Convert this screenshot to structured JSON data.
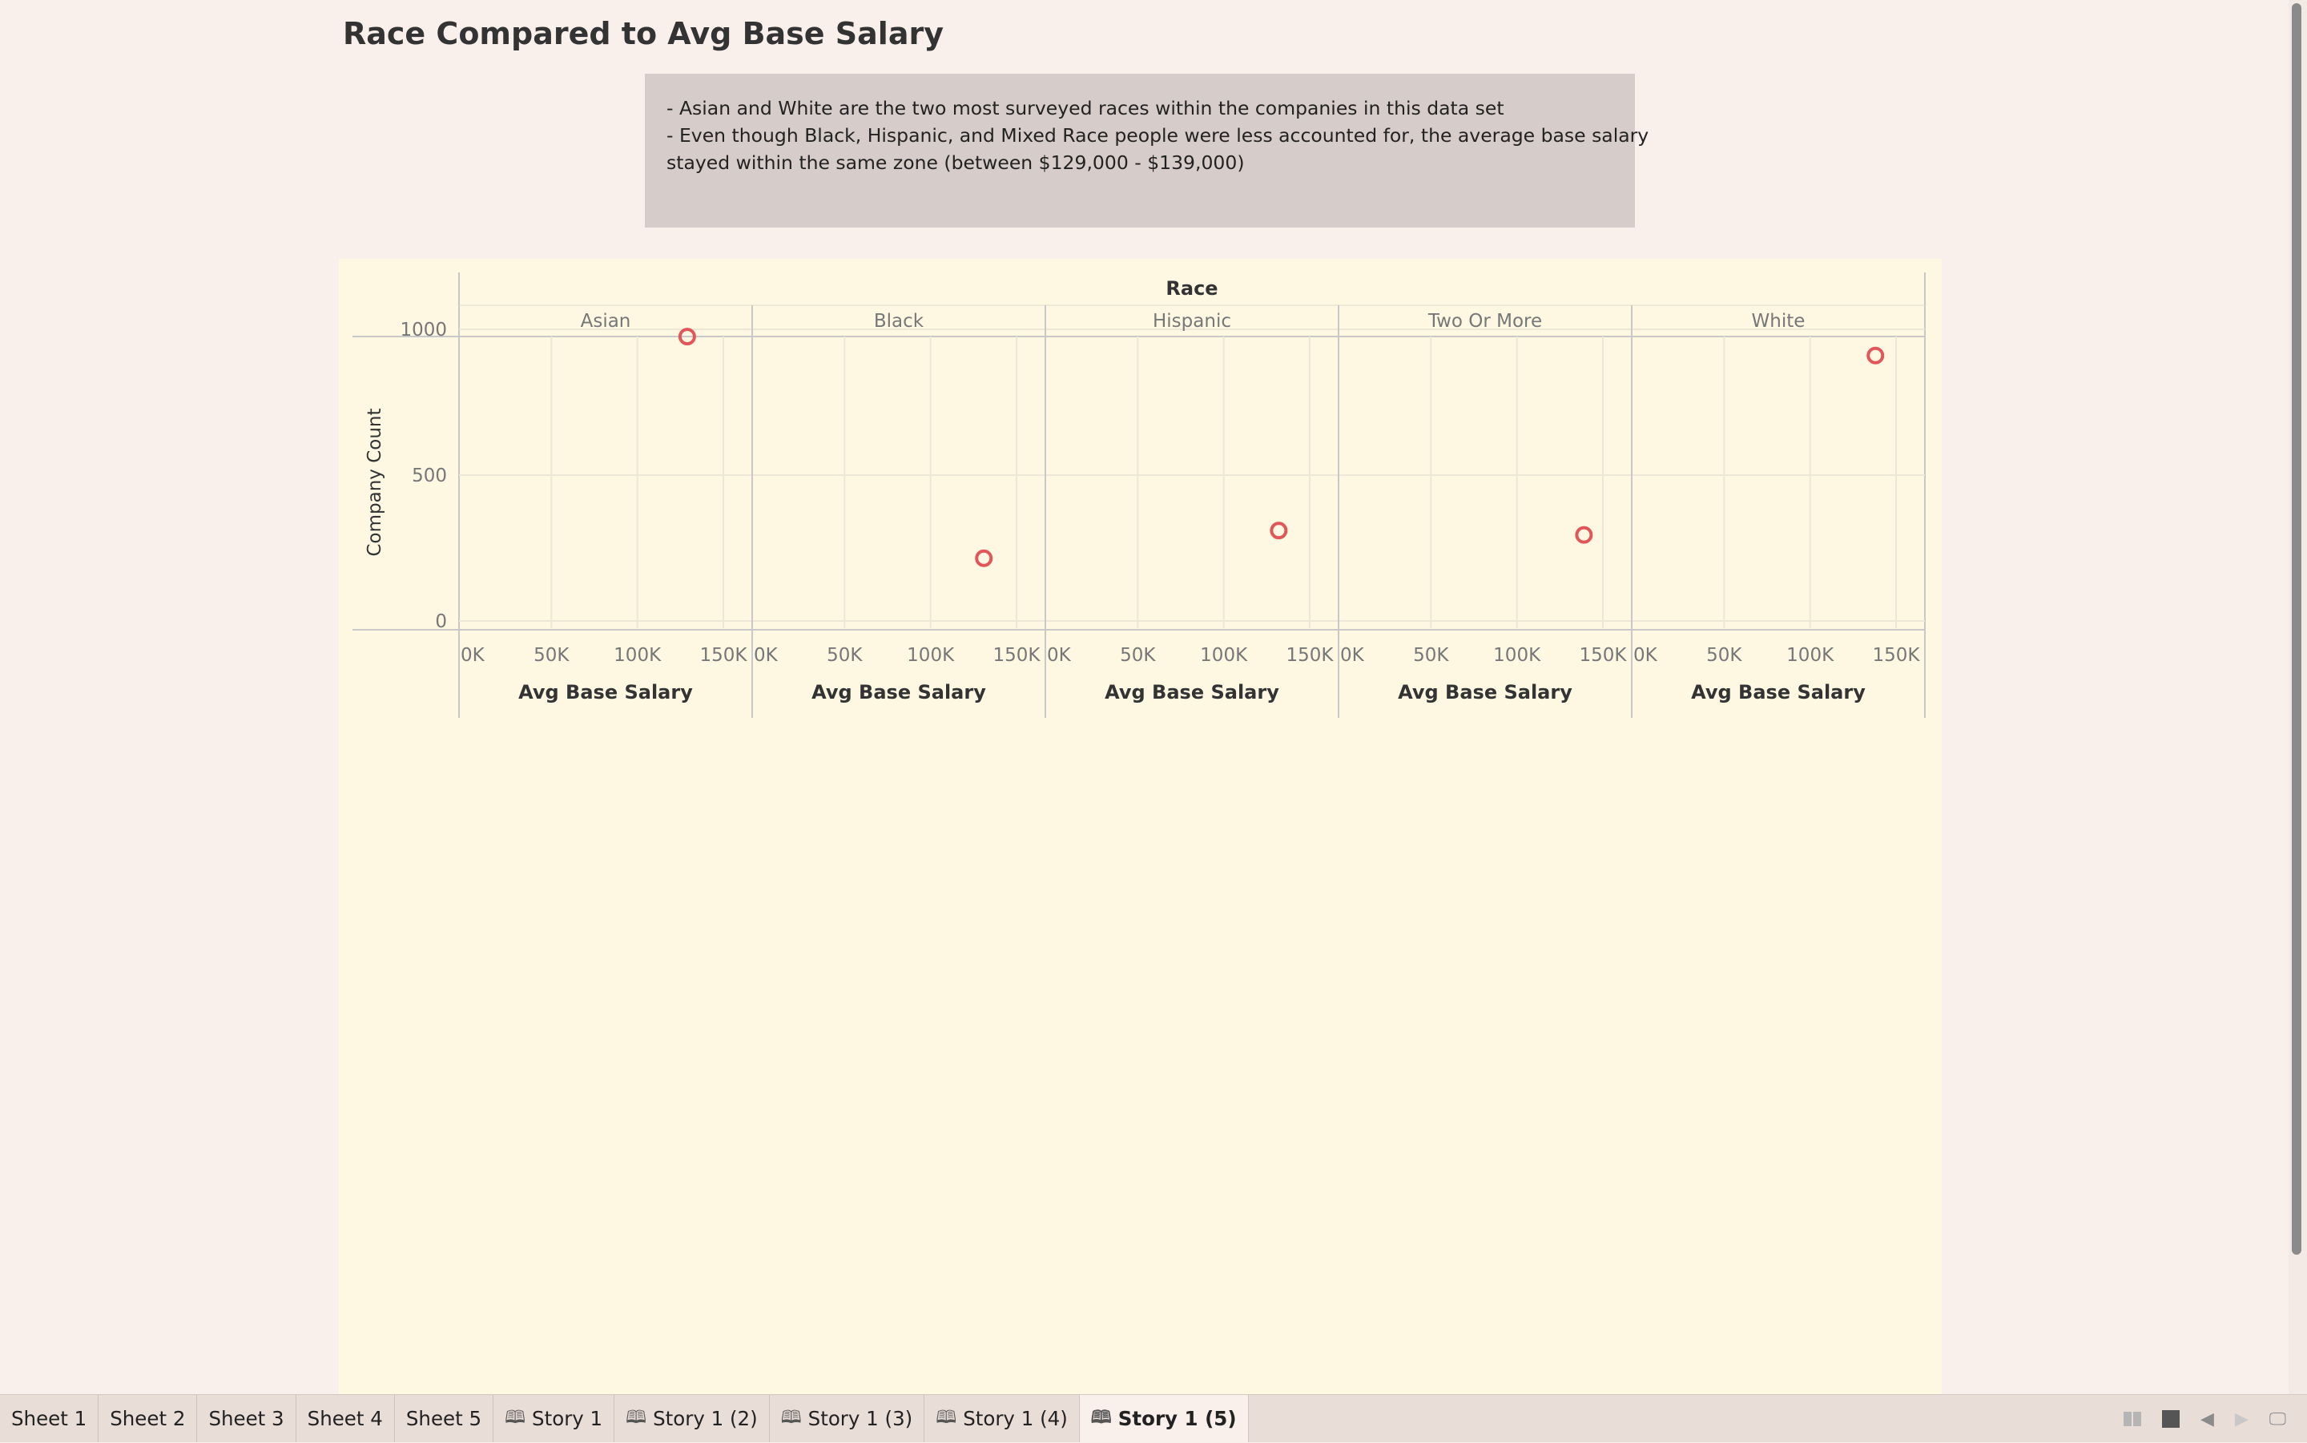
{
  "dashboard": {
    "title": "Race Compared to Avg Base Salary",
    "notes": [
      "- Asian and White are the two most surveyed races within the companies in this data set",
      "- Even though Black, Hispanic, and Mixed Race people were less accounted for, the average base salary",
      "stayed within the same zone (between $129,000 - $139,000)"
    ]
  },
  "chart_data": {
    "type": "scatter",
    "column_header": "Race",
    "ylabel": "Company Count",
    "xlabel": "Avg Base Salary",
    "ylim": [
      0,
      1000
    ],
    "yticks": [
      0,
      500,
      1000
    ],
    "ytick_labels": [
      "0",
      "500",
      "1000"
    ],
    "xlim": [
      0,
      150000
    ],
    "xticks": [
      0,
      50000,
      100000,
      150000
    ],
    "xtick_labels": [
      "0K",
      "50K",
      "100K",
      "150K"
    ],
    "marker_color": "#e15759",
    "panels": [
      {
        "category": "Asian",
        "x": 129000,
        "y": 975
      },
      {
        "category": "Black",
        "x": 131000,
        "y": 215
      },
      {
        "category": "Hispanic",
        "x": 132000,
        "y": 310
      },
      {
        "category": "Two Or More",
        "x": 139000,
        "y": 295
      },
      {
        "category": "White",
        "x": 138000,
        "y": 910
      }
    ]
  },
  "tabs": [
    {
      "label": "Sheet 1",
      "story": false,
      "active": false
    },
    {
      "label": "Sheet 2",
      "story": false,
      "active": false
    },
    {
      "label": "Sheet 3",
      "story": false,
      "active": false
    },
    {
      "label": "Sheet 4",
      "story": false,
      "active": false
    },
    {
      "label": "Sheet 5",
      "story": false,
      "active": false
    },
    {
      "label": "Story 1",
      "story": true,
      "active": false
    },
    {
      "label": "Story 1 (2)",
      "story": true,
      "active": false
    },
    {
      "label": "Story 1 (3)",
      "story": true,
      "active": false
    },
    {
      "label": "Story 1 (4)",
      "story": true,
      "active": false
    },
    {
      "label": "Story 1 (5)",
      "story": true,
      "active": true
    }
  ],
  "tabbar_icons": [
    "grid-view-icon",
    "single-view-icon",
    "previous-icon",
    "next-icon",
    "presentation-icon"
  ]
}
